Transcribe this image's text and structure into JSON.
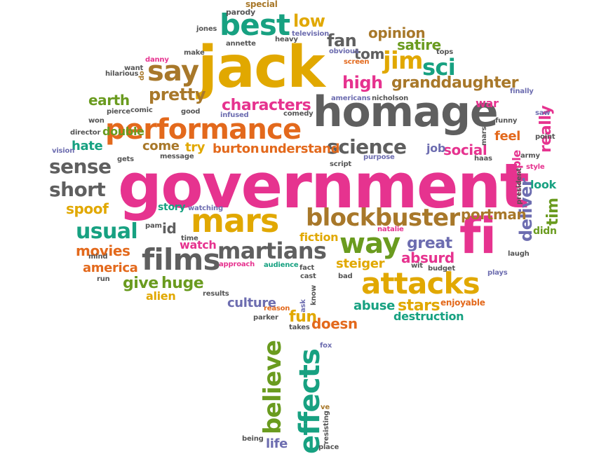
{
  "cloud": {
    "colors": {
      "magenta": "#e6338f",
      "gold": "#e1a800",
      "gray": "#5f5f5f",
      "teal": "#17a181",
      "orange": "#e3691c",
      "green": "#6a9b1f",
      "purple": "#6d6db0",
      "brown": "#a8782a",
      "dark": "#555555"
    },
    "words": [
      {
        "text": "government",
        "color": "magenta"
      },
      {
        "text": "jack",
        "color": "gold"
      },
      {
        "text": "homage",
        "color": "gray"
      },
      {
        "text": "performance",
        "color": "orange"
      },
      {
        "text": "attacks",
        "color": "gold"
      },
      {
        "text": "mars",
        "color": "gold"
      },
      {
        "text": "fi",
        "color": "magenta"
      },
      {
        "text": "films",
        "color": "gray"
      },
      {
        "text": "blockbuster",
        "color": "brown"
      },
      {
        "text": "martians",
        "color": "gray"
      },
      {
        "text": "effects",
        "color": "teal"
      },
      {
        "text": "believe",
        "color": "green"
      },
      {
        "text": "best",
        "color": "teal"
      },
      {
        "text": "say",
        "color": "brown"
      },
      {
        "text": "way",
        "color": "green"
      },
      {
        "text": "jim",
        "color": "gold"
      },
      {
        "text": "sci",
        "color": "teal"
      },
      {
        "text": "science",
        "color": "gray"
      },
      {
        "text": "characters",
        "color": "magenta"
      },
      {
        "text": "sense",
        "color": "gray"
      },
      {
        "text": "short",
        "color": "gray"
      },
      {
        "text": "usual",
        "color": "teal"
      },
      {
        "text": "granddaughter",
        "color": "brown"
      },
      {
        "text": "pretty",
        "color": "brown"
      },
      {
        "text": "high",
        "color": "magenta"
      },
      {
        "text": "earth",
        "color": "green"
      },
      {
        "text": "spoof",
        "color": "gold"
      },
      {
        "text": "movies",
        "color": "orange"
      },
      {
        "text": "give",
        "color": "green"
      },
      {
        "text": "huge",
        "color": "green"
      },
      {
        "text": "burton",
        "color": "orange"
      },
      {
        "text": "understand",
        "color": "orange"
      },
      {
        "text": "deliver",
        "color": "purple"
      },
      {
        "text": "portman",
        "color": "brown"
      },
      {
        "text": "really",
        "color": "magenta"
      },
      {
        "text": "tim",
        "color": "green"
      },
      {
        "text": "feel",
        "color": "orange"
      },
      {
        "text": "social",
        "color": "magenta"
      },
      {
        "text": "great",
        "color": "purple"
      },
      {
        "text": "absurd",
        "color": "magenta"
      },
      {
        "text": "steiger",
        "color": "gold"
      },
      {
        "text": "stars",
        "color": "gold"
      },
      {
        "text": "abuse",
        "color": "teal"
      },
      {
        "text": "culture",
        "color": "purple"
      },
      {
        "text": "fun",
        "color": "gold"
      },
      {
        "text": "doesn",
        "color": "orange"
      },
      {
        "text": "america",
        "color": "orange"
      },
      {
        "text": "hate",
        "color": "teal"
      },
      {
        "text": "come",
        "color": "brown"
      },
      {
        "text": "try",
        "color": "gold"
      },
      {
        "text": "low",
        "color": "gold"
      },
      {
        "text": "fan",
        "color": "gray"
      },
      {
        "text": "tom",
        "color": "gray"
      },
      {
        "text": "opinion",
        "color": "brown"
      },
      {
        "text": "satire",
        "color": "green"
      },
      {
        "text": "watch",
        "color": "magenta"
      },
      {
        "text": "story",
        "color": "teal"
      },
      {
        "text": "id",
        "color": "gray"
      },
      {
        "text": "fiction",
        "color": "gold"
      },
      {
        "text": "double",
        "color": "green"
      },
      {
        "text": "alien",
        "color": "gold"
      },
      {
        "text": "life",
        "color": "purple"
      },
      {
        "text": "destruction",
        "color": "teal"
      },
      {
        "text": "look",
        "color": "teal"
      },
      {
        "text": "job",
        "color": "purple"
      },
      {
        "text": "war",
        "color": "magenta"
      },
      {
        "text": "multiple",
        "color": "magenta"
      },
      {
        "text": "didn",
        "color": "green"
      },
      {
        "text": "enjoyable",
        "color": "orange"
      },
      {
        "text": "special",
        "color": "brown"
      },
      {
        "text": "parody",
        "color": "dark"
      },
      {
        "text": "television",
        "color": "purple"
      },
      {
        "text": "jones",
        "color": "dark"
      },
      {
        "text": "annette",
        "color": "dark"
      },
      {
        "text": "heavy",
        "color": "dark"
      },
      {
        "text": "obvious",
        "color": "purple"
      },
      {
        "text": "screen",
        "color": "orange"
      },
      {
        "text": "tops",
        "color": "dark"
      },
      {
        "text": "danny",
        "color": "magenta"
      },
      {
        "text": "make",
        "color": "dark"
      },
      {
        "text": "want",
        "color": "dark"
      },
      {
        "text": "hilarious",
        "color": "dark"
      },
      {
        "text": "americans",
        "color": "purple"
      },
      {
        "text": "nicholson",
        "color": "dark"
      },
      {
        "text": "finally",
        "color": "purple"
      },
      {
        "text": "pierce",
        "color": "dark"
      },
      {
        "text": "comic",
        "color": "dark"
      },
      {
        "text": "good",
        "color": "dark"
      },
      {
        "text": "comedy",
        "color": "dark"
      },
      {
        "text": "infused",
        "color": "purple"
      },
      {
        "text": "won",
        "color": "dark"
      },
      {
        "text": "funny",
        "color": "dark"
      },
      {
        "text": "saw",
        "color": "purple"
      },
      {
        "text": "director",
        "color": "dark"
      },
      {
        "text": "vision",
        "color": "purple"
      },
      {
        "text": "message",
        "color": "dark"
      },
      {
        "text": "gets",
        "color": "dark"
      },
      {
        "text": "point",
        "color": "dark"
      },
      {
        "text": "script",
        "color": "dark"
      },
      {
        "text": "purpose",
        "color": "purple"
      },
      {
        "text": "haas",
        "color": "dark"
      },
      {
        "text": "army",
        "color": "dark"
      },
      {
        "text": "style",
        "color": "magenta"
      },
      {
        "text": "president",
        "color": "dark"
      },
      {
        "text": "pam",
        "color": "dark"
      },
      {
        "text": "watching",
        "color": "purple"
      },
      {
        "text": "time",
        "color": "dark"
      },
      {
        "text": "natalie",
        "color": "magenta"
      },
      {
        "text": "laugh",
        "color": "dark"
      },
      {
        "text": "mind",
        "color": "dark"
      },
      {
        "text": "approach",
        "color": "magenta"
      },
      {
        "text": "audience",
        "color": "teal"
      },
      {
        "text": "fact",
        "color": "dark"
      },
      {
        "text": "cast",
        "color": "dark"
      },
      {
        "text": "wit",
        "color": "dark"
      },
      {
        "text": "budget",
        "color": "dark"
      },
      {
        "text": "plays",
        "color": "purple"
      },
      {
        "text": "run",
        "color": "dark"
      },
      {
        "text": "bad",
        "color": "dark"
      },
      {
        "text": "results",
        "color": "dark"
      },
      {
        "text": "reason",
        "color": "orange"
      },
      {
        "text": "parker",
        "color": "dark"
      },
      {
        "text": "ask",
        "color": "purple"
      },
      {
        "text": "know",
        "color": "dark"
      },
      {
        "text": "takes",
        "color": "dark"
      },
      {
        "text": "fox",
        "color": "purple"
      },
      {
        "text": "ve",
        "color": "brown"
      },
      {
        "text": "resisting",
        "color": "dark"
      },
      {
        "text": "being",
        "color": "dark"
      },
      {
        "text": "place",
        "color": "dark"
      },
      {
        "text": "do",
        "color": "brown"
      },
      {
        "text": "mars",
        "color": "dark"
      }
    ]
  }
}
